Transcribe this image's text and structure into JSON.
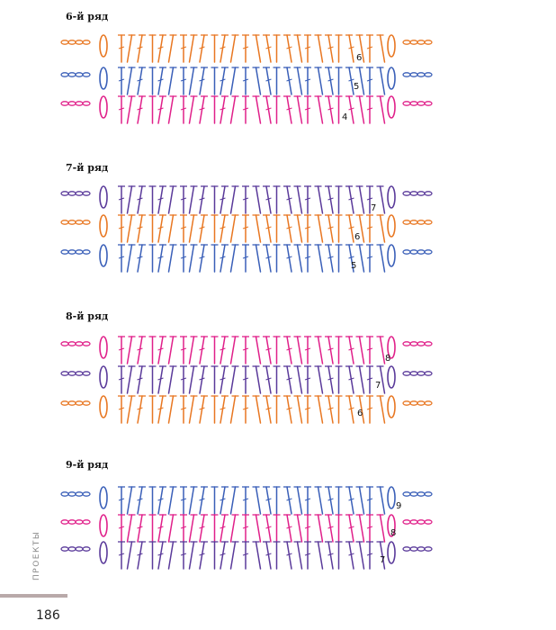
{
  "rows": [
    {
      "label": "6-й ряд",
      "row_numbers": [
        "6",
        "5",
        "4"
      ]
    },
    {
      "label": "7-й ряд",
      "row_numbers": [
        "7",
        "6",
        "5"
      ]
    },
    {
      "label": "8-й ряд",
      "row_numbers": [
        "8",
        "7",
        "6"
      ]
    },
    {
      "label": "9-й ряд",
      "row_numbers": [
        "9",
        "8",
        "7"
      ]
    }
  ],
  "side_label": "ПРОЕКТЫ",
  "page_number": "186",
  "colors": {
    "orange": "#e87722",
    "blue": "#3a5fb8",
    "pink": "#e0208a",
    "purple": "#5a3a9a",
    "bar": "#b9a9a9"
  }
}
